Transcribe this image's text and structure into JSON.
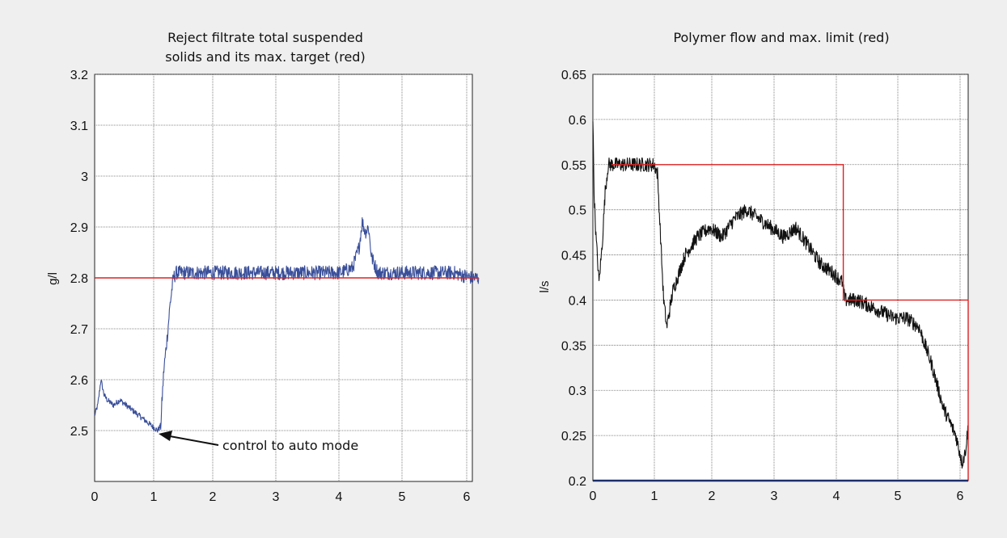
{
  "colors": {
    "background": "#efefef",
    "plot_bg": "#ffffff",
    "grid": "#555555",
    "axes": "#222222",
    "blue_series": "#3a4f9a",
    "black_series": "#111111",
    "red_limit": "#dd2222",
    "baseline_blue": "#1c2d6b"
  },
  "chart_data": [
    {
      "type": "line",
      "title": [
        "Reject filtrate total suspended",
        "solids and its max. target (red)"
      ],
      "xlabel": "",
      "ylabel": "g/l",
      "xlim": [
        0,
        6
      ],
      "ylim": [
        2.4,
        3.2
      ],
      "xticks": [
        "0",
        "1",
        "2",
        "3",
        "4",
        "5",
        "6"
      ],
      "yticks": [
        "3.2",
        "3.1",
        "3",
        "2.9",
        "2.8",
        "2.7",
        "2.6",
        "2.5"
      ],
      "ytick_values": [
        3.2,
        3.1,
        3.0,
        2.9,
        2.8,
        2.7,
        2.6,
        2.5
      ],
      "grid": true,
      "series": [
        {
          "color": "#3a4f9a",
          "x": [
            0,
            0.05,
            0.1,
            0.15,
            0.2,
            0.3,
            0.4,
            0.5,
            0.6,
            0.7,
            0.8,
            0.9,
            1.0,
            1.05,
            1.08,
            1.1,
            1.15,
            1.2,
            1.25,
            1.3,
            1.5,
            1.8,
            2.1,
            2.4,
            2.7,
            3.0,
            3.3,
            3.6,
            3.9,
            4.1,
            4.2,
            4.25,
            4.3,
            4.35,
            4.4,
            4.5,
            4.8,
            5.1,
            5.4,
            5.7,
            6.0,
            6.1
          ],
          "y": [
            2.53,
            2.55,
            2.6,
            2.57,
            2.56,
            2.55,
            2.56,
            2.55,
            2.54,
            2.53,
            2.52,
            2.51,
            2.5,
            2.51,
            2.58,
            2.62,
            2.68,
            2.75,
            2.8,
            2.81,
            2.81,
            2.81,
            2.81,
            2.81,
            2.81,
            2.81,
            2.81,
            2.81,
            2.81,
            2.82,
            2.86,
            2.91,
            2.89,
            2.9,
            2.84,
            2.81,
            2.81,
            2.81,
            2.81,
            2.81,
            2.8,
            2.8
          ],
          "noise": 0.014
        },
        {
          "color": "#dd2222",
          "x": [
            0,
            1.05,
            1.1,
            6.1
          ],
          "y": [
            2.8,
            2.8,
            2.8,
            2.8
          ],
          "noise": 0
        }
      ],
      "annotations": [
        {
          "text": "control to auto mode",
          "arrow_to_x": 1.05,
          "arrow_to_y": 2.5
        }
      ]
    },
    {
      "type": "line",
      "title": [
        "Polymer flow and max. limit (red)"
      ],
      "xlabel": "",
      "ylabel": "l/s",
      "xlim": [
        0,
        6.1
      ],
      "ylim": [
        0.2,
        0.65
      ],
      "xticks": [
        "0",
        "1",
        "2",
        "3",
        "4",
        "5",
        "6"
      ],
      "yticks": [
        "0.65",
        "0.6",
        "0.55",
        "0.5",
        "0.45",
        "0.4",
        "0.35",
        "0.3",
        "0.25",
        "0.2"
      ],
      "ytick_values": [
        0.65,
        0.6,
        0.55,
        0.5,
        0.45,
        0.4,
        0.35,
        0.3,
        0.25,
        0.2
      ],
      "grid": true,
      "series": [
        {
          "color": "#111111",
          "x": [
            0,
            0.02,
            0.05,
            0.1,
            0.15,
            0.2,
            0.25,
            0.3,
            0.5,
            0.7,
            0.9,
            1.0,
            1.05,
            1.1,
            1.15,
            1.2,
            1.3,
            1.5,
            1.7,
            1.9,
            2.1,
            2.3,
            2.5,
            2.7,
            2.9,
            3.1,
            3.3,
            3.5,
            3.7,
            3.9,
            4.05,
            4.1,
            4.3,
            4.6,
            4.9,
            5.1,
            5.3,
            5.5,
            5.7,
            5.9,
            6.0,
            6.05,
            6.1
          ],
          "y": [
            0.6,
            0.52,
            0.47,
            0.42,
            0.46,
            0.52,
            0.55,
            0.55,
            0.55,
            0.55,
            0.55,
            0.55,
            0.54,
            0.47,
            0.4,
            0.37,
            0.41,
            0.45,
            0.47,
            0.48,
            0.47,
            0.49,
            0.5,
            0.49,
            0.48,
            0.47,
            0.48,
            0.46,
            0.44,
            0.43,
            0.42,
            0.4,
            0.4,
            0.39,
            0.38,
            0.38,
            0.37,
            0.33,
            0.28,
            0.25,
            0.22,
            0.23,
            0.26
          ],
          "noise": 0.008
        },
        {
          "color": "#dd2222",
          "x": [
            0.3,
            4.07,
            4.07,
            6.1,
            6.1
          ],
          "y": [
            0.55,
            0.55,
            0.4,
            0.4,
            0.2
          ],
          "noise": 0
        },
        {
          "color": "#1c2d6b",
          "x": [
            0,
            6.1
          ],
          "y": [
            0.2,
            0.2
          ],
          "noise": 0
        }
      ],
      "annotations": []
    }
  ]
}
